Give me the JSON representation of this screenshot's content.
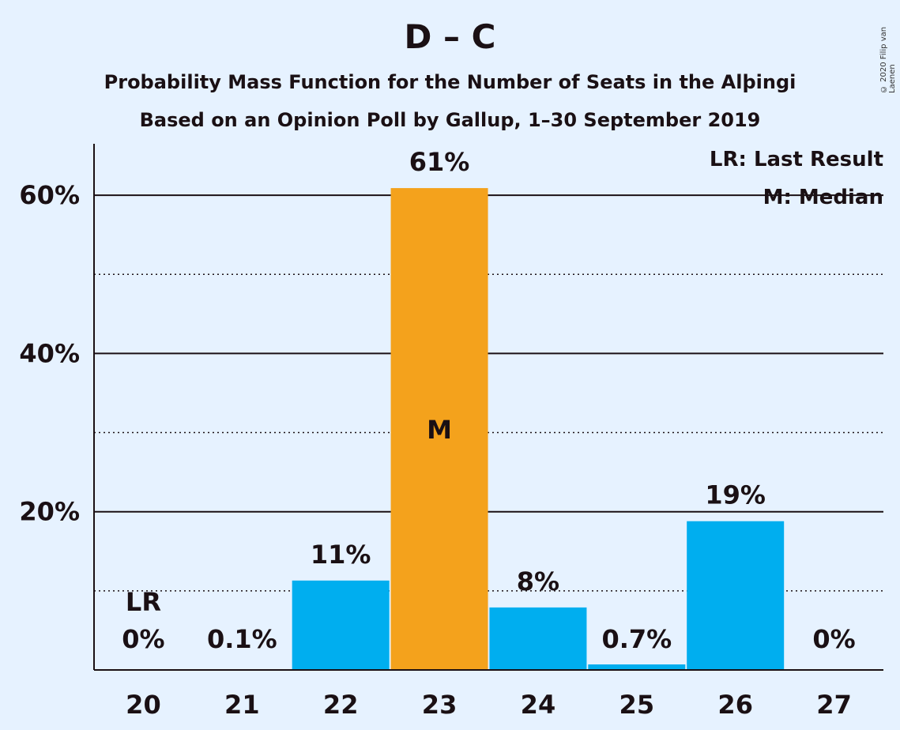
{
  "chart_data": {
    "type": "bar",
    "title": "D – C",
    "subtitle": "Probability Mass Function for the Number of Seats in the Alþingi",
    "subtitle2": "Based on an Opinion Poll by Gallup, 1–30 September 2019",
    "copyright": "© 2020 Filip van Laenen",
    "categories": [
      "20",
      "21",
      "22",
      "23",
      "24",
      "25",
      "26",
      "27"
    ],
    "values": [
      0,
      0.1,
      11.3,
      60.9,
      7.9,
      0.7,
      18.8,
      0
    ],
    "value_labels": [
      "0%",
      "0.1%",
      "11%",
      "61%",
      "8%",
      "0.7%",
      "19%",
      "0%"
    ],
    "median_index": 3,
    "median_label": "M",
    "last_result_index": 0,
    "last_result_label": "LR",
    "ylim": [
      0,
      66.5
    ],
    "y_major_ticks": [
      20,
      40,
      60
    ],
    "y_tick_labels": [
      "20%",
      "40%",
      "60%"
    ],
    "y_minor_ticks": [
      10,
      30,
      50
    ],
    "legend": {
      "placement": "top-right",
      "items": [
        "LR: Last Result",
        "M: Median"
      ]
    },
    "colors": {
      "bar": "#00aeef",
      "median_bar": "#f4a21c",
      "background": "#e6f2ff",
      "text": "#1a1014"
    }
  }
}
